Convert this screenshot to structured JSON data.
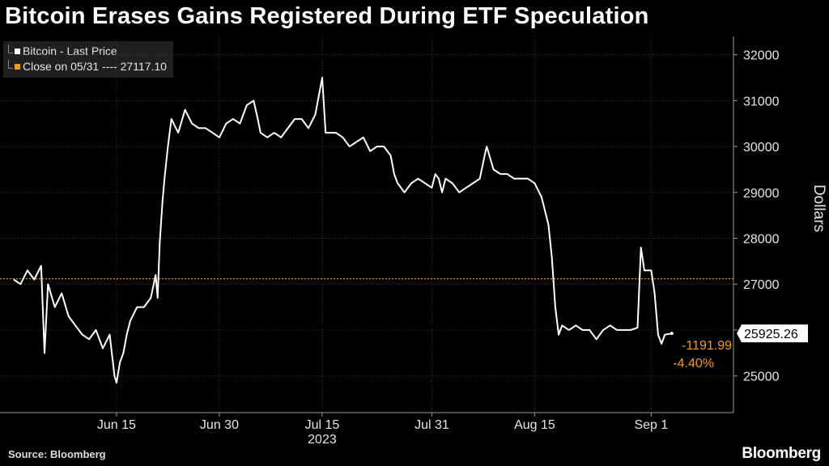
{
  "title": "Bitcoin Erases Gains Registered During ETF Speculation",
  "legend": {
    "series_label": "Bitcoin - Last Price",
    "close_label": "Close on 05/31 ---- 27117.10"
  },
  "source": "Source: Bloomberg",
  "brand": "Bloomberg",
  "colors": {
    "price": "#ffffff",
    "close": "#f39a1e",
    "grid": "#3a3a3a",
    "bg": "#000000"
  },
  "chart_data": {
    "type": "line",
    "ylabel": "Dollars",
    "ylim": [
      24200,
      32400
    ],
    "yticks": [
      25000,
      26000,
      27000,
      28000,
      29000,
      30000,
      31000,
      32000
    ],
    "xticks": [
      {
        "label": "Jun 15",
        "day": 15
      },
      {
        "label": "Jun 30",
        "day": 30
      },
      {
        "label": "Jul 15",
        "day": 45
      },
      {
        "label": "Jul 31",
        "day": 61
      },
      {
        "label": "Aug 15",
        "day": 76
      },
      {
        "label": "Sep 1",
        "day": 93
      }
    ],
    "year_label": "2023",
    "reference_line": {
      "value": 27117.1
    },
    "last_value": "25925.26",
    "change_abs": "-1191.99",
    "change_pct": "-4.40%",
    "series": [
      {
        "name": "Bitcoin - Last Price",
        "points": [
          [
            0,
            27100
          ],
          [
            1,
            27000
          ],
          [
            2,
            27300
          ],
          [
            3,
            27100
          ],
          [
            4,
            27400
          ],
          [
            4.5,
            25500
          ],
          [
            5,
            27000
          ],
          [
            6,
            26500
          ],
          [
            7,
            26800
          ],
          [
            8,
            26300
          ],
          [
            9,
            26100
          ],
          [
            10,
            25900
          ],
          [
            11,
            25800
          ],
          [
            12,
            26000
          ],
          [
            13,
            25600
          ],
          [
            14,
            25900
          ],
          [
            14.7,
            25000
          ],
          [
            15,
            24850
          ],
          [
            15.5,
            25300
          ],
          [
            16,
            25500
          ],
          [
            16.5,
            25900
          ],
          [
            17,
            26200
          ],
          [
            18,
            26500
          ],
          [
            19,
            26500
          ],
          [
            20,
            26700
          ],
          [
            20.7,
            27200
          ],
          [
            21,
            26700
          ],
          [
            21.3,
            27900
          ],
          [
            21.7,
            28800
          ],
          [
            22,
            29300
          ],
          [
            22.5,
            30000
          ],
          [
            23,
            30600
          ],
          [
            24,
            30300
          ],
          [
            25,
            30800
          ],
          [
            26,
            30500
          ],
          [
            27,
            30400
          ],
          [
            28,
            30400
          ],
          [
            29,
            30300
          ],
          [
            30,
            30200
          ],
          [
            31,
            30500
          ],
          [
            32,
            30600
          ],
          [
            33,
            30500
          ],
          [
            34,
            30900
          ],
          [
            35,
            31000
          ],
          [
            35.6,
            30600
          ],
          [
            36,
            30300
          ],
          [
            37,
            30200
          ],
          [
            38,
            30300
          ],
          [
            39,
            30200
          ],
          [
            40,
            30400
          ],
          [
            41,
            30600
          ],
          [
            42,
            30600
          ],
          [
            43,
            30400
          ],
          [
            44,
            30700
          ],
          [
            45,
            31500
          ],
          [
            45.5,
            30300
          ],
          [
            46,
            30300
          ],
          [
            47,
            30300
          ],
          [
            48,
            30200
          ],
          [
            49,
            30000
          ],
          [
            50,
            30100
          ],
          [
            51,
            30200
          ],
          [
            52,
            29900
          ],
          [
            53,
            30000
          ],
          [
            54,
            30000
          ],
          [
            55,
            29800
          ],
          [
            55.5,
            29400
          ],
          [
            56,
            29200
          ],
          [
            57,
            29000
          ],
          [
            58,
            29200
          ],
          [
            59,
            29300
          ],
          [
            60,
            29200
          ],
          [
            61,
            29100
          ],
          [
            61.5,
            29400
          ],
          [
            62,
            29300
          ],
          [
            62.5,
            29000
          ],
          [
            63,
            29300
          ],
          [
            64,
            29200
          ],
          [
            65,
            29000
          ],
          [
            66,
            29100
          ],
          [
            67,
            29200
          ],
          [
            68,
            29300
          ],
          [
            68.7,
            29800
          ],
          [
            69,
            30000
          ],
          [
            70,
            29500
          ],
          [
            71,
            29400
          ],
          [
            72,
            29400
          ],
          [
            73,
            29300
          ],
          [
            74,
            29300
          ],
          [
            75,
            29300
          ],
          [
            76,
            29200
          ],
          [
            77,
            28900
          ],
          [
            78,
            28300
          ],
          [
            78.5,
            27600
          ],
          [
            79,
            26500
          ],
          [
            79.5,
            25900
          ],
          [
            80,
            26100
          ],
          [
            81,
            26000
          ],
          [
            82,
            26100
          ],
          [
            83,
            26000
          ],
          [
            84,
            26000
          ],
          [
            85,
            25800
          ],
          [
            86,
            26000
          ],
          [
            87,
            26100
          ],
          [
            88,
            26000
          ],
          [
            89,
            26000
          ],
          [
            90,
            26000
          ],
          [
            91,
            26050
          ],
          [
            91.5,
            27800
          ],
          [
            92,
            27300
          ],
          [
            93,
            27300
          ],
          [
            93.5,
            26800
          ],
          [
            94,
            25900
          ],
          [
            94.5,
            25700
          ],
          [
            95,
            25900
          ],
          [
            96,
            25925.26
          ]
        ]
      }
    ]
  }
}
